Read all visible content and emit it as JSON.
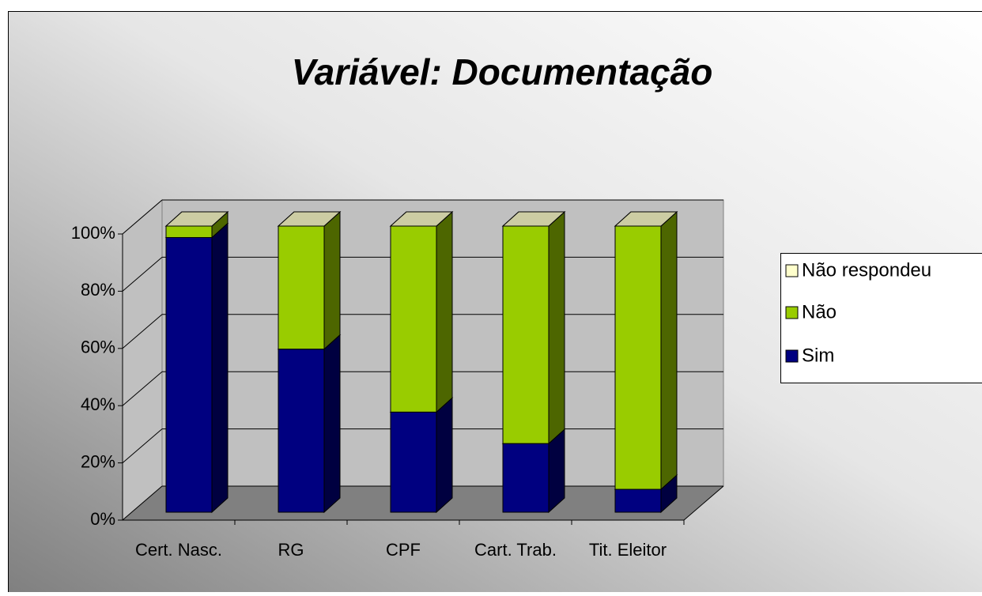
{
  "chart_data": {
    "type": "bar3d_stacked",
    "title": "Variável: Documentação",
    "categories": [
      "Cert. Nasc.",
      "RG",
      "CPF",
      "Cart. Trab.",
      "Tit. Eleitor"
    ],
    "series": [
      {
        "name": "Sim",
        "color": "#000080",
        "values": [
          96,
          57,
          35,
          24,
          8
        ]
      },
      {
        "name": "Não",
        "color": "#99cc00",
        "values": [
          4,
          43,
          65,
          76,
          92
        ]
      },
      {
        "name": "Não respondeu",
        "color": "#ffffcc",
        "values": [
          0,
          0,
          0,
          0,
          0
        ]
      }
    ],
    "ylim": [
      0,
      100
    ],
    "yticks": [
      {
        "value": 0,
        "label": "0%"
      },
      {
        "value": 20,
        "label": "20%"
      },
      {
        "value": 40,
        "label": "40%"
      },
      {
        "value": 60,
        "label": "60%"
      },
      {
        "value": 80,
        "label": "80%"
      },
      {
        "value": 100,
        "label": "100%"
      }
    ],
    "grid": true,
    "legend": "right"
  }
}
